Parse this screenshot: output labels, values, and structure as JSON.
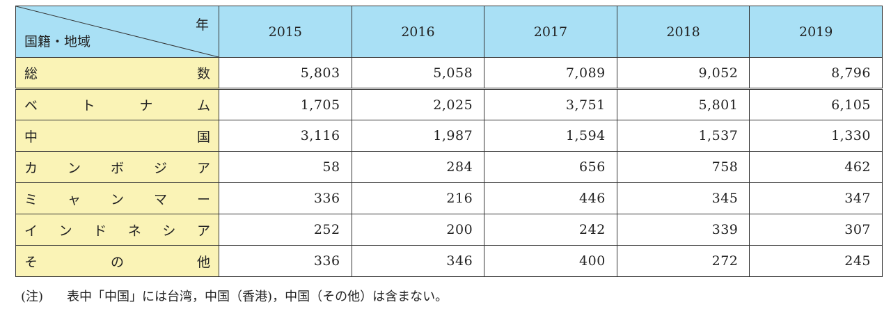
{
  "header": {
    "corner_top": "年",
    "corner_bottom": "国籍・地域",
    "years": [
      "2015",
      "2016",
      "2017",
      "2018",
      "2019"
    ]
  },
  "rows": [
    {
      "label_chars": [
        "総",
        "数"
      ],
      "values": [
        "5,803",
        "5,058",
        "7,089",
        "9,052",
        "8,796"
      ]
    },
    {
      "label_chars": [
        "ベ",
        "ト",
        "ナ",
        "ム"
      ],
      "values": [
        "1,705",
        "2,025",
        "3,751",
        "5,801",
        "6,105"
      ]
    },
    {
      "label_chars": [
        "中",
        "国"
      ],
      "values": [
        "3,116",
        "1,987",
        "1,594",
        "1,537",
        "1,330"
      ]
    },
    {
      "label_chars": [
        "カ",
        "ン",
        "ボ",
        "ジ",
        "ア"
      ],
      "values": [
        "58",
        "284",
        "656",
        "758",
        "462"
      ]
    },
    {
      "label_chars": [
        "ミ",
        "ャ",
        "ン",
        "マ",
        "ー"
      ],
      "values": [
        "336",
        "216",
        "446",
        "345",
        "347"
      ]
    },
    {
      "label_chars": [
        "イ",
        "ン",
        "ド",
        "ネ",
        "シ",
        "ア"
      ],
      "values": [
        "252",
        "200",
        "242",
        "339",
        "307"
      ]
    },
    {
      "label_chars": [
        "そ",
        "の",
        "他"
      ],
      "values": [
        "336",
        "346",
        "400",
        "272",
        "245"
      ]
    }
  ],
  "note": {
    "tag": "(注)",
    "text": "表中「中国」には台湾，中国（香港)，中国（その他）は含まない。"
  },
  "colors": {
    "header_bg": "#a9e0f5",
    "row_header_bg": "#faf3b6"
  }
}
